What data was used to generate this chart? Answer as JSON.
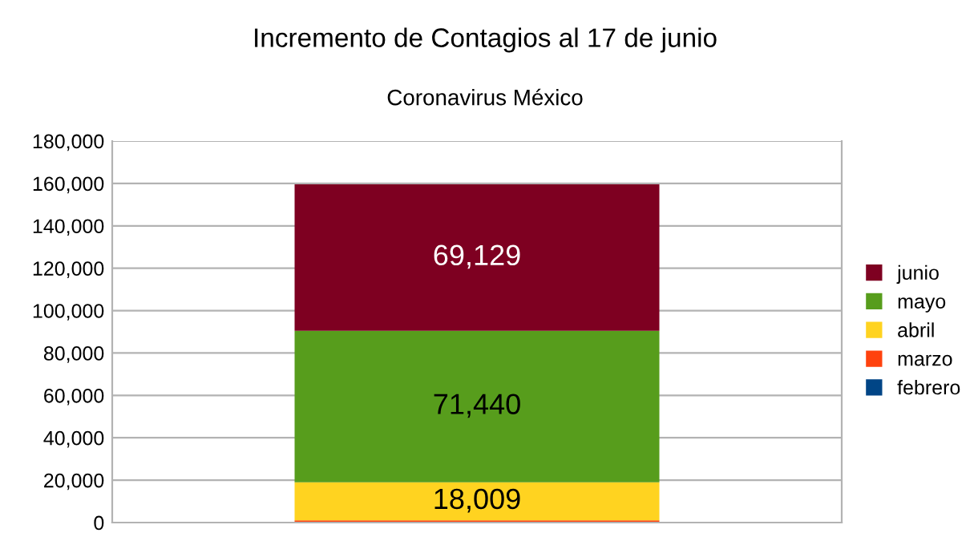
{
  "chart_data": {
    "type": "bar",
    "title": "Incremento de Contagios al 17 de junio",
    "subtitle": "Coronavirus México",
    "categories": [
      null
    ],
    "stacked": true,
    "series": [
      {
        "name": "febrero",
        "color": "#004586",
        "values": [
          null
        ],
        "value_labels": [
          null
        ]
      },
      {
        "name": "marzo",
        "color": "#ff420e",
        "values": [
          1000
        ],
        "value_labels": [
          null
        ]
      },
      {
        "name": "abril",
        "color": "#ffd320",
        "values": [
          18009
        ],
        "value_labels": [
          "18,009"
        ]
      },
      {
        "name": "mayo",
        "color": "#579d1c",
        "values": [
          71440
        ],
        "value_labels": [
          "71,440"
        ]
      },
      {
        "name": "junio",
        "color": "#7e0021",
        "values": [
          69129
        ],
        "value_labels": [
          "69,129"
        ]
      }
    ],
    "ylim": [
      0,
      180000
    ],
    "yticks": [
      {
        "value": 0,
        "label": "0"
      },
      {
        "value": 20000,
        "label": "20,000"
      },
      {
        "value": 40000,
        "label": "40,000"
      },
      {
        "value": 60000,
        "label": "60,000"
      },
      {
        "value": 80000,
        "label": "80,000"
      },
      {
        "value": 100000,
        "label": "100,000"
      },
      {
        "value": 120000,
        "label": "120,000"
      },
      {
        "value": 140000,
        "label": "140,000"
      },
      {
        "value": 160000,
        "label": "160,000"
      },
      {
        "value": 180000,
        "label": "180,000"
      }
    ],
    "grid": "y",
    "legend": "right"
  }
}
